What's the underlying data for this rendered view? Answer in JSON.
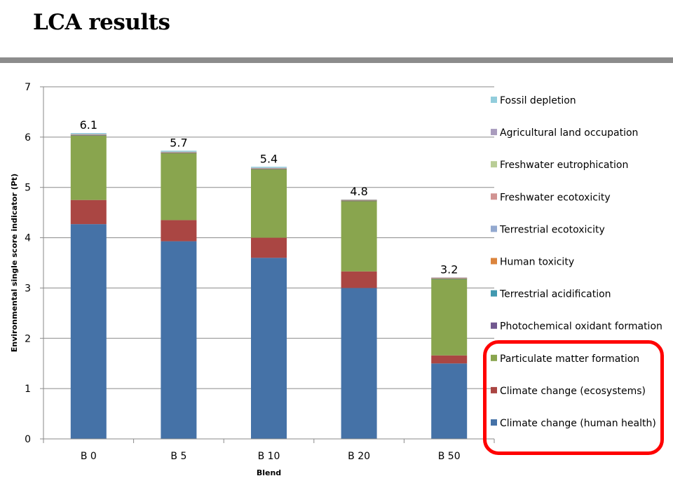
{
  "slide": {
    "title": "LCA results"
  },
  "chart_data": {
    "type": "bar",
    "stacked": true,
    "categories": [
      "B 0",
      "B 5",
      "B 10",
      "B 20",
      "B 50"
    ],
    "xlabel": "Blend",
    "ylabel": "Environmental single score indicator (Pt)",
    "ylim": [
      0,
      7
    ],
    "yticks": [
      "0",
      "1",
      "2",
      "3",
      "4",
      "5",
      "6",
      "7"
    ],
    "grid": true,
    "legend_position": "right",
    "totals": [
      "6.1",
      "5.7",
      "5.4",
      "4.8",
      "3.2"
    ],
    "series": [
      {
        "name": "Climate change (human health)",
        "color": "#4572A7",
        "values": [
          4.27,
          3.93,
          3.6,
          3.0,
          1.5
        ]
      },
      {
        "name": "Climate change (ecosystems)",
        "color": "#AA4643",
        "values": [
          0.48,
          0.42,
          0.4,
          0.33,
          0.16
        ]
      },
      {
        "name": "Particulate matter formation",
        "color": "#89A54E",
        "values": [
          1.28,
          1.33,
          1.36,
          1.4,
          1.52
        ]
      },
      {
        "name": "Photochemical oxidant formation",
        "color": "#71588F",
        "values": [
          0.005,
          0.005,
          0.005,
          0.005,
          0.005
        ]
      },
      {
        "name": "Terrestrial acidification",
        "color": "#4198AF",
        "values": [
          0.005,
          0.005,
          0.005,
          0.005,
          0.005
        ]
      },
      {
        "name": "Human toxicity",
        "color": "#DB843D",
        "values": [
          0.005,
          0.005,
          0.005,
          0.005,
          0.005
        ]
      },
      {
        "name": "Terrestrial ecotoxicity",
        "color": "#93A9CF",
        "values": [
          0.0,
          0.0,
          0.0,
          0.0,
          0.0
        ]
      },
      {
        "name": "Freshwater ecotoxicity",
        "color": "#D19392",
        "values": [
          0.005,
          0.005,
          0.005,
          0.005,
          0.005
        ]
      },
      {
        "name": "Freshwater eutrophication",
        "color": "#B9CD96",
        "values": [
          0.005,
          0.005,
          0.005,
          0.005,
          0.005
        ]
      },
      {
        "name": "Agricultural land occupation",
        "color": "#A99BBD",
        "values": [
          0.005,
          0.005,
          0.005,
          0.005,
          0.005
        ]
      },
      {
        "name": "Fossil depletion",
        "color": "#92CDDC",
        "values": [
          0.02,
          0.02,
          0.02,
          0.0,
          0.0
        ]
      }
    ],
    "legend_highlight": {
      "color": "#FF0000",
      "entries": [
        "Particulate matter formation",
        "Climate change (ecosystems)",
        "Climate change (human health)"
      ]
    }
  }
}
